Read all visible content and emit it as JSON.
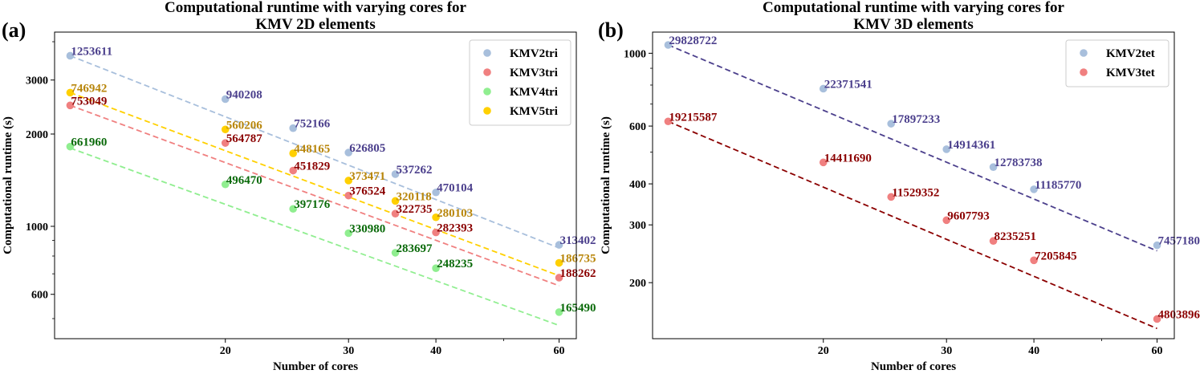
{
  "chart_data": [
    {
      "type": "scatter",
      "panel_label": "(a)",
      "title": "Computational runtime with varying cores for",
      "subtitle": "KMV 2D elements",
      "xlabel": "Number of cores",
      "ylabel": "Computational runtime (s)",
      "xscale": "log",
      "yscale": "log",
      "xlim": [
        11.4,
        63.5
      ],
      "ylim": [
        430,
        4300
      ],
      "xticks": [
        20,
        30,
        40,
        60
      ],
      "yticks": [
        600,
        1000,
        2000,
        3000
      ],
      "legend_position": "top-right",
      "x": [
        12,
        20,
        25,
        30,
        35,
        40,
        60
      ],
      "series": [
        {
          "name": "KMV2tri",
          "color": "#a8bfdc",
          "label_color": "#4b3f8c",
          "values": [
            3600,
            2600,
            2090,
            1740,
            1480,
            1290,
            870
          ],
          "labels": [
            "1253611",
            "940208",
            "752166",
            "626805",
            "537262",
            "470104",
            "313402"
          ],
          "fit": [
            [
              12,
              3600
            ],
            [
              60,
              850
            ]
          ]
        },
        {
          "name": "KMV3tri",
          "color": "#f08080",
          "label_color": "#8b0000",
          "values": [
            2480,
            1870,
            1520,
            1260,
            1100,
            955,
            680
          ],
          "labels": [
            "753049",
            "564787",
            "451829",
            "376524",
            "322735",
            "282393",
            "188262"
          ],
          "fit": [
            [
              12,
              2480
            ],
            [
              60,
              640
            ]
          ]
        },
        {
          "name": "KMV4tri",
          "color": "#90ee90",
          "label_color": "#0a6a0a",
          "values": [
            1820,
            1370,
            1140,
            950,
            820,
            730,
            525
          ],
          "labels": [
            "661960",
            "496470",
            "397176",
            "330980",
            "283697",
            "248235",
            "165490"
          ],
          "fit": [
            [
              12,
              1800
            ],
            [
              60,
              475
            ]
          ]
        },
        {
          "name": "KMV5tri",
          "color": "#ffd000",
          "label_color": "#b8860b",
          "values": [
            2730,
            2070,
            1730,
            1410,
            1210,
            1070,
            760
          ],
          "labels": [
            "746942",
            "560206",
            "448165",
            "373471",
            "320118",
            "280103",
            "186735"
          ],
          "fit": [
            [
              12,
              2730
            ],
            [
              60,
              690
            ]
          ]
        }
      ]
    },
    {
      "type": "scatter",
      "panel_label": "(b)",
      "title": "Computational runtime with varying cores for",
      "subtitle": "KMV 3D elements",
      "xlabel": "Number of cores",
      "ylabel": "Computational runtime (s)",
      "xscale": "log",
      "yscale": "log",
      "xlim": [
        11.4,
        63.5
      ],
      "ylim": [
        135,
        1160
      ],
      "xticks": [
        20,
        30,
        40,
        60
      ],
      "yticks": [
        200,
        300,
        400,
        600,
        1000
      ],
      "legend_position": "top-right",
      "x": [
        12,
        20,
        25,
        30,
        35,
        40,
        60
      ],
      "series": [
        {
          "name": "KMV2tet",
          "color": "#a8bfdc",
          "label_color": "#4b3f8c",
          "values": [
            1060,
            780,
            610,
            510,
            450,
            385,
            260
          ],
          "labels": [
            "29828722",
            "22371541",
            "17897233",
            "14914361",
            "12783738",
            "11185770",
            "7457180"
          ],
          "fit": [
            [
              12,
              1060
            ],
            [
              60,
              250
            ]
          ]
        },
        {
          "name": "KMV3tet",
          "color": "#f08080",
          "label_color": "#8b0000",
          "values": [
            620,
            465,
            365,
            310,
            268,
            234,
            155
          ],
          "labels": [
            "19215587",
            "14411690",
            "11529352",
            "9607793",
            "8235251",
            "7205845",
            "4803896"
          ],
          "fit": [
            [
              12,
              620
            ],
            [
              60,
              145
            ]
          ]
        }
      ]
    }
  ]
}
